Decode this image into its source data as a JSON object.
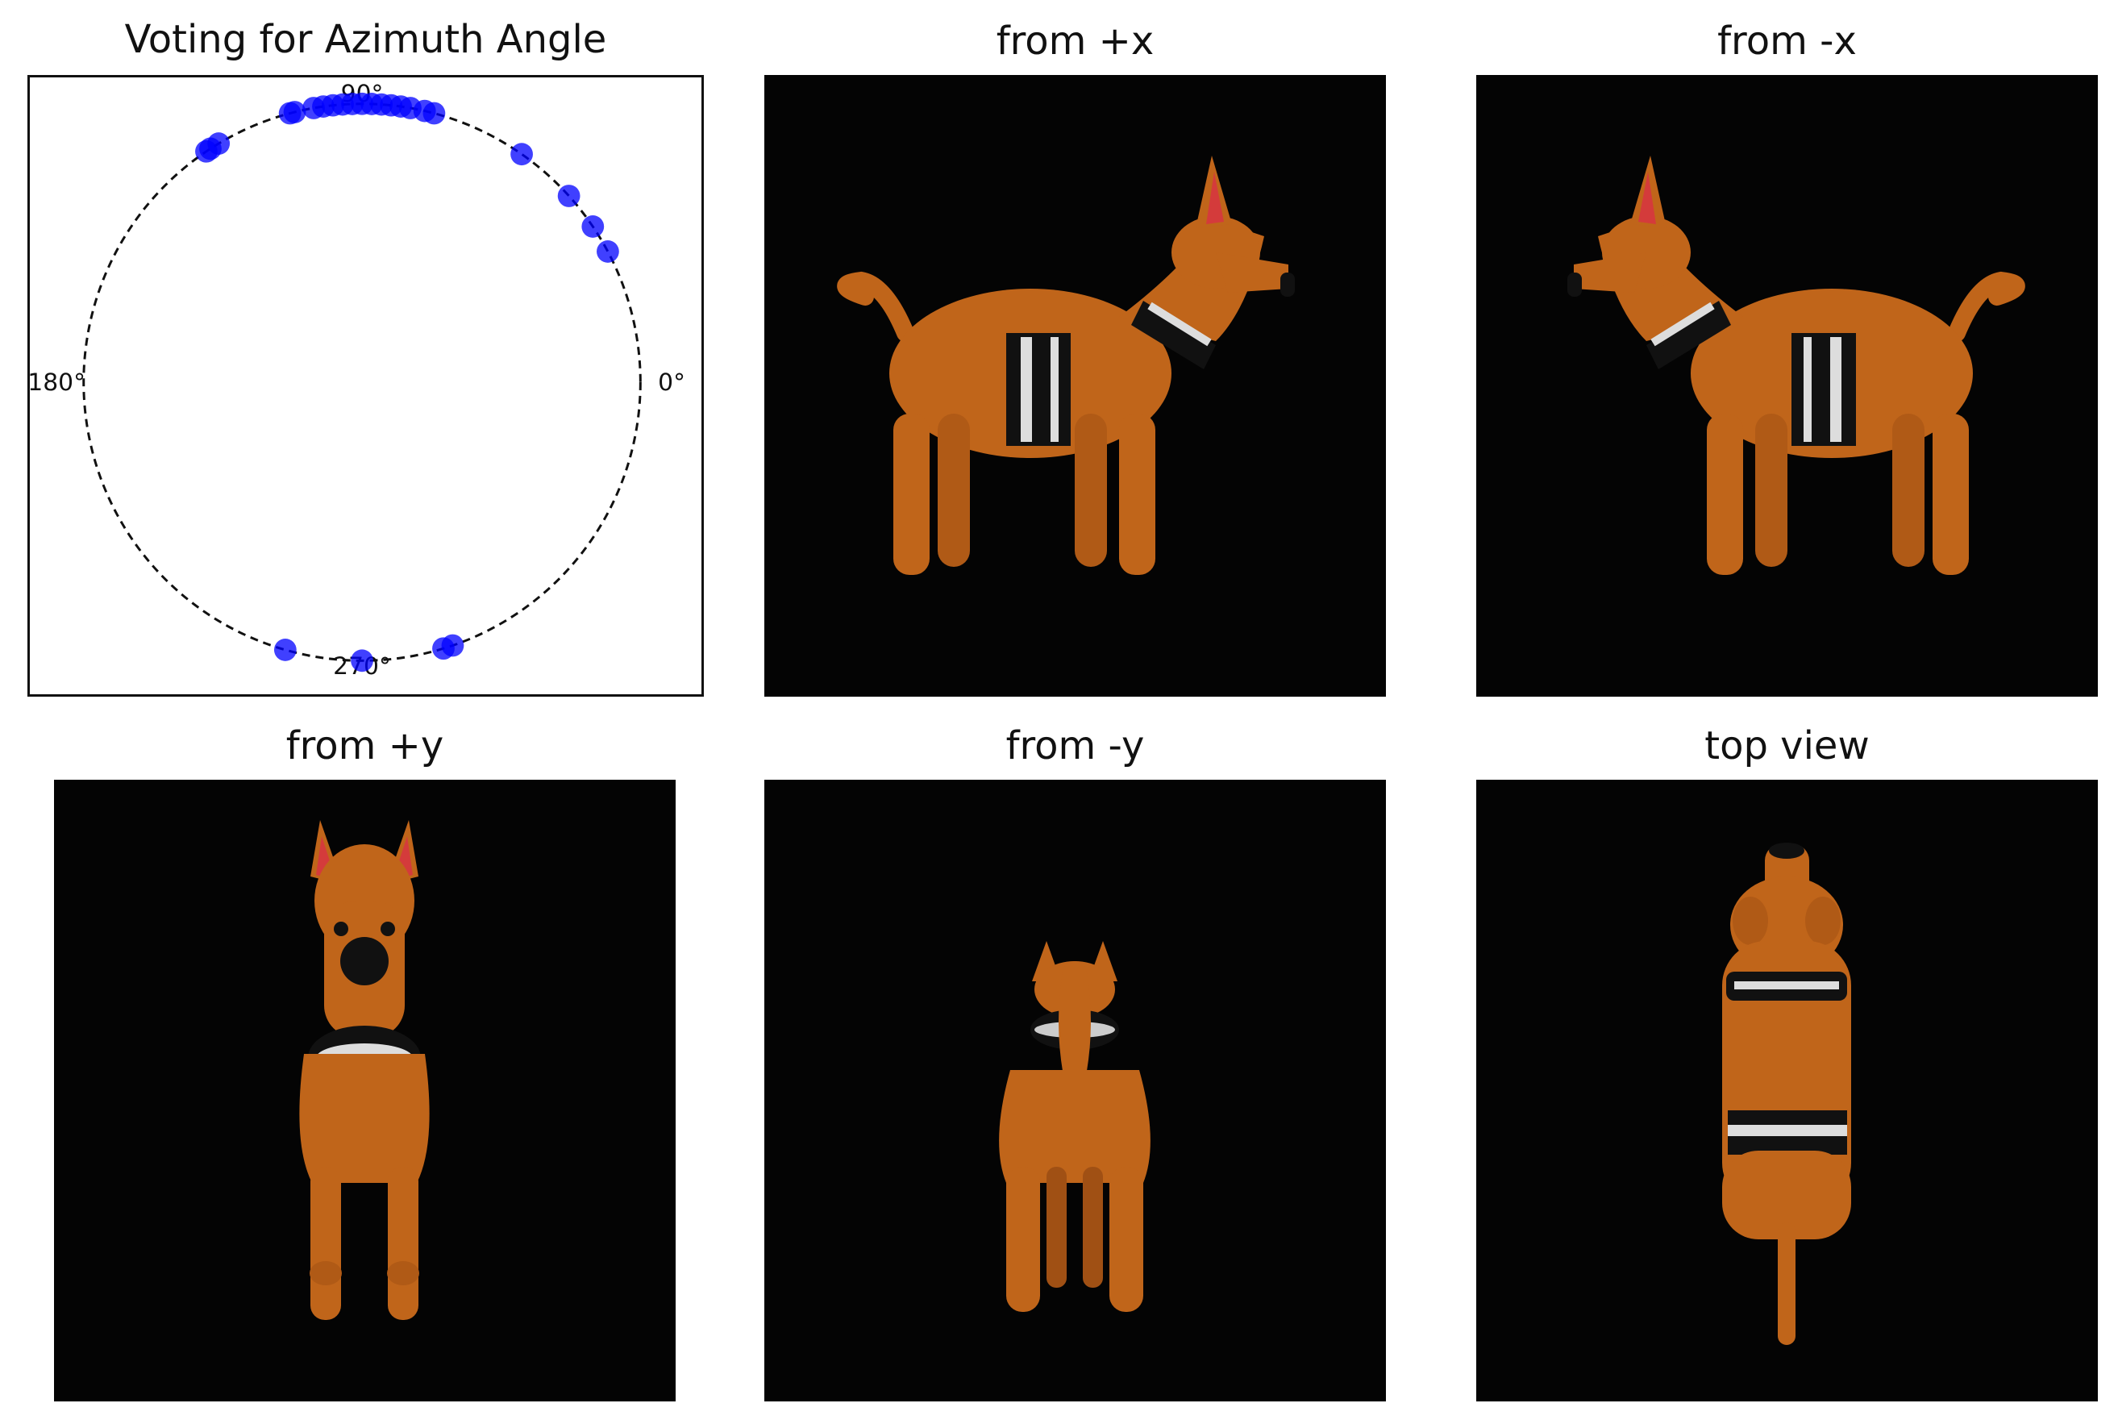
{
  "chart_data": [
    {
      "type": "scatter",
      "title": "Voting for Azimuth Angle",
      "coordinate_system": "polar",
      "angle_ticks": [
        "0°",
        "90°",
        "180°",
        "270°"
      ],
      "point_color": "#0000ff",
      "points_deg": [
        75,
        77,
        80,
        82,
        84,
        86,
        88,
        90,
        92,
        94,
        96,
        98,
        100,
        104,
        105,
        121,
        123,
        124,
        55,
        42,
        34,
        28,
        254,
        270,
        287,
        289
      ]
    }
  ],
  "panels": [
    {
      "title": "from +x",
      "image": "dog-side-facing-right"
    },
    {
      "title": "from -x",
      "image": "dog-side-facing-left"
    },
    {
      "title": "from +y",
      "image": "dog-front-view"
    },
    {
      "title": "from -y",
      "image": "dog-rear-view"
    },
    {
      "title": "top view",
      "image": "dog-top-view"
    }
  ]
}
